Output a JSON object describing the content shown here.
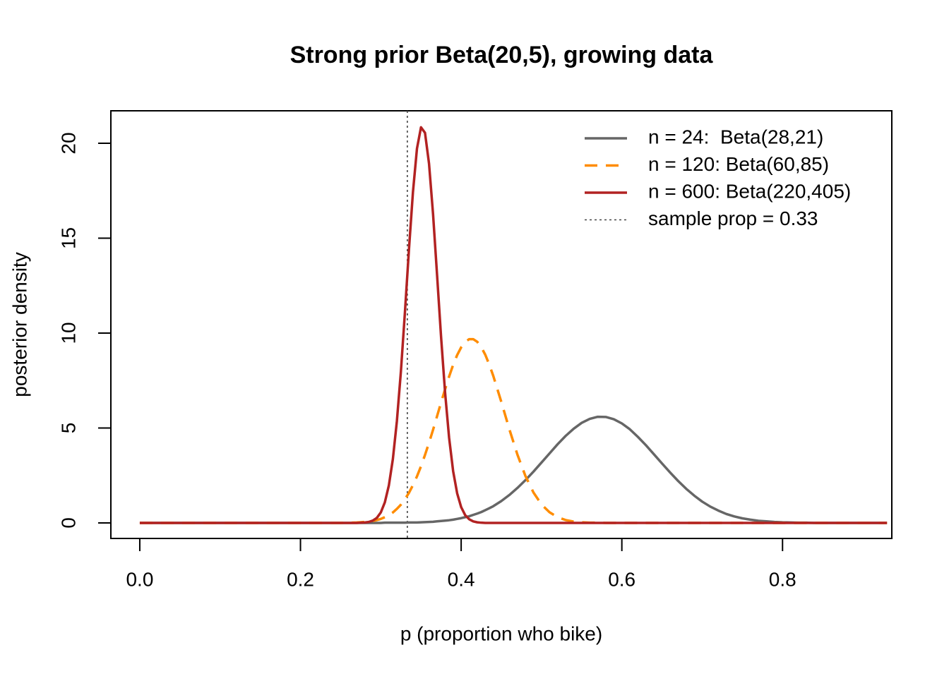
{
  "chart_data": {
    "type": "line",
    "title": "Strong prior Beta(20,5), growing data",
    "xlabel": "p (proportion who bike)",
    "ylabel": "posterior density",
    "x": [
      0,
      0.05,
      0.1,
      0.15,
      0.2,
      0.25,
      0.26,
      0.27,
      0.28,
      0.285,
      0.29,
      0.295,
      0.3,
      0.305,
      0.31,
      0.315,
      0.32,
      0.325,
      0.33,
      0.335,
      0.34,
      0.345,
      0.35,
      0.355,
      0.36,
      0.365,
      0.37,
      0.375,
      0.38,
      0.385,
      0.39,
      0.395,
      0.4,
      0.405,
      0.41,
      0.415,
      0.42,
      0.425,
      0.43,
      0.435,
      0.44,
      0.45,
      0.46,
      0.47,
      0.48,
      0.49,
      0.5,
      0.51,
      0.52,
      0.53,
      0.54,
      0.55,
      0.56,
      0.57,
      0.58,
      0.59,
      0.6,
      0.61,
      0.62,
      0.63,
      0.64,
      0.65,
      0.66,
      0.67,
      0.68,
      0.69,
      0.7,
      0.71,
      0.72,
      0.73,
      0.74,
      0.75,
      0.76,
      0.77,
      0.78,
      0.79,
      0.8,
      0.81,
      0.82,
      0.83,
      0.84,
      0.85,
      0.9,
      0.93
    ],
    "series": [
      {
        "name": "n = 24:  Beta(28,21)",
        "color": "#666666",
        "dash": "solid",
        "values": [
          0,
          0,
          0,
          0,
          0,
          0,
          0,
          0,
          0,
          0,
          0,
          0,
          0,
          0.01,
          0.01,
          0.01,
          0.01,
          0.01,
          0.01,
          0.02,
          0.02,
          0.02,
          0.03,
          0.04,
          0.05,
          0.06,
          0.08,
          0.1,
          0.12,
          0.14,
          0.17,
          0.21,
          0.25,
          0.3,
          0.35,
          0.42,
          0.49,
          0.57,
          0.67,
          0.77,
          0.88,
          1.15,
          1.47,
          1.84,
          2.25,
          2.7,
          3.18,
          3.66,
          4.14,
          4.58,
          4.96,
          5.27,
          5.48,
          5.59,
          5.58,
          5.46,
          5.24,
          4.93,
          4.53,
          4.09,
          3.61,
          3.13,
          2.66,
          2.21,
          1.8,
          1.44,
          1.12,
          0.86,
          0.65,
          0.47,
          0.34,
          0.24,
          0.17,
          0.11,
          0.08,
          0.05,
          0.03,
          0.02,
          0.01,
          0.01,
          0,
          0,
          0,
          0
        ]
      },
      {
        "name": "n = 120: Beta(60,85)",
        "color": "#ff8c00",
        "dash": "dashed",
        "values": [
          0,
          0,
          0,
          0,
          0,
          0,
          0.01,
          0.02,
          0.05,
          0.07,
          0.1,
          0.15,
          0.21,
          0.3,
          0.41,
          0.55,
          0.74,
          0.96,
          1.25,
          1.58,
          1.99,
          2.45,
          2.98,
          3.58,
          4.22,
          4.9,
          5.62,
          6.34,
          7.04,
          7.71,
          8.32,
          8.84,
          9.25,
          9.53,
          9.68,
          9.68,
          9.54,
          9.26,
          8.86,
          8.34,
          7.74,
          6.37,
          4.93,
          3.6,
          2.47,
          1.6,
          0.97,
          0.56,
          0.3,
          0.15,
          0.07,
          0.03,
          0.01,
          0.01,
          0,
          0,
          0,
          0,
          0,
          0,
          0,
          0,
          0,
          0,
          0,
          0,
          0,
          0,
          0,
          0,
          0,
          0,
          0,
          0,
          0,
          0,
          0,
          0,
          0,
          0,
          0,
          0,
          0,
          0
        ]
      },
      {
        "name": "n = 600: Beta(220,405)",
        "color": "#b22222",
        "dash": "solid",
        "values": [
          0,
          0,
          0,
          0,
          0,
          0,
          0,
          0,
          0.02,
          0.05,
          0.12,
          0.26,
          0.55,
          1.08,
          1.97,
          3.36,
          5.36,
          7.98,
          11.09,
          14.39,
          17.43,
          19.72,
          20.84,
          20.55,
          18.93,
          16.28,
          13.07,
          9.8,
          6.86,
          4.48,
          2.73,
          1.56,
          0.83,
          0.41,
          0.19,
          0.08,
          0.03,
          0.01,
          0,
          0,
          0,
          0,
          0,
          0,
          0,
          0,
          0,
          0,
          0,
          0,
          0,
          0,
          0,
          0,
          0,
          0,
          0,
          0,
          0,
          0,
          0,
          0,
          0,
          0,
          0,
          0,
          0,
          0,
          0,
          0,
          0,
          0,
          0,
          0,
          0,
          0,
          0,
          0,
          0,
          0,
          0,
          0,
          0,
          0
        ]
      }
    ],
    "vline": {
      "name": "sample prop = 0.33",
      "x": 0.333,
      "color": "#444444"
    },
    "xlim": [
      -0.036,
      0.936
    ],
    "ylim": [
      -0.82,
      21.71
    ],
    "xticks": [
      {
        "value": 0,
        "label": "0.0"
      },
      0.2,
      0.4,
      0.6,
      0.8
    ],
    "yticks": [
      0,
      5,
      10,
      15,
      20
    ],
    "legend": "top-right"
  }
}
